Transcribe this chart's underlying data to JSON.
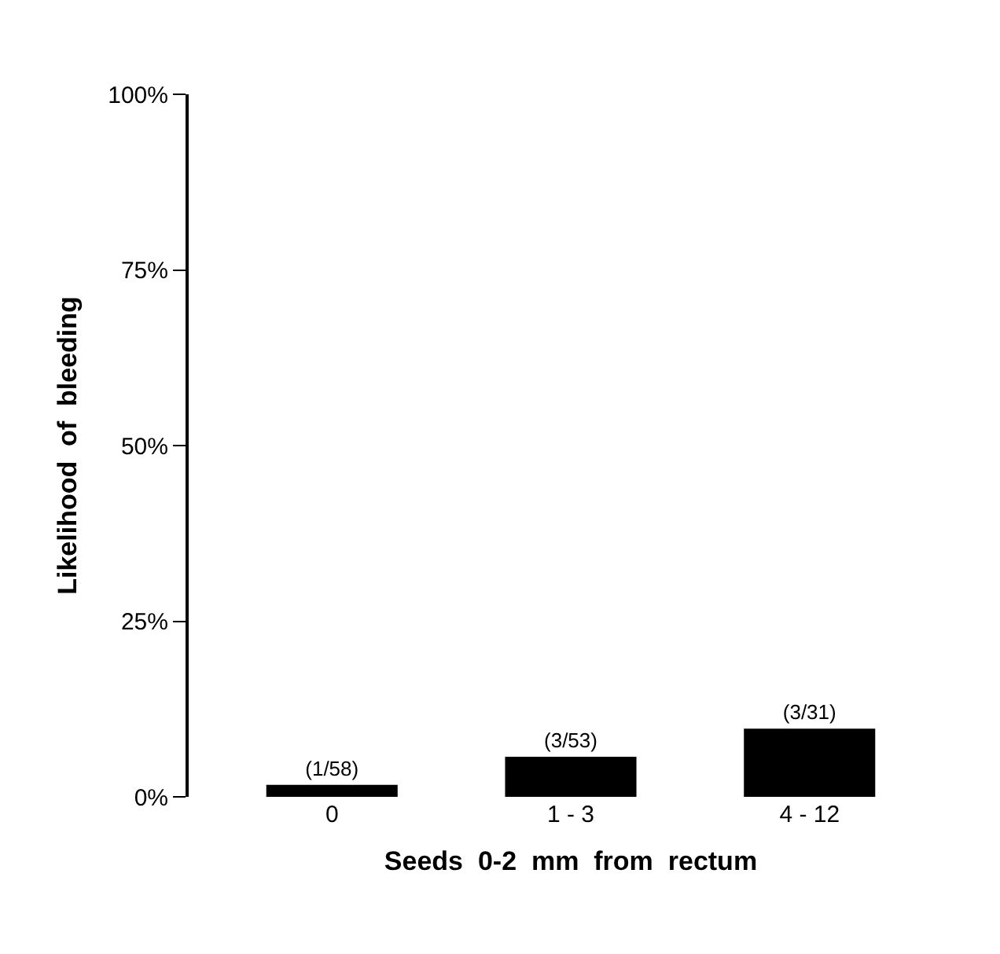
{
  "chart_data": {
    "type": "bar",
    "xlabel": "Seeds  0-2  mm  from  rectum",
    "ylabel": "Likelihood  of  bleeding",
    "categories": [
      "0",
      "1 - 3",
      "4 - 12"
    ],
    "values": [
      1.7,
      5.7,
      9.7
    ],
    "value_labels": [
      "(1/58)",
      "(3/53)",
      "(3/31)"
    ],
    "color": "#000000",
    "ylim": [
      0,
      100
    ],
    "yticks": [
      {
        "value": 0,
        "label": "0%"
      },
      {
        "value": 25,
        "label": "25%"
      },
      {
        "value": 50,
        "label": "50%"
      },
      {
        "value": 75,
        "label": "75%"
      },
      {
        "value": 100,
        "label": "100%"
      }
    ],
    "legend": false
  }
}
